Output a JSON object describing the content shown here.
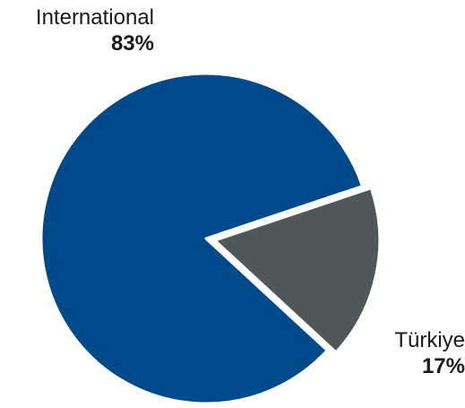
{
  "chart_data": {
    "type": "pie",
    "title": "",
    "slices": [
      {
        "label": "International",
        "value": 83,
        "value_label": "83%",
        "color": "#004a8c"
      },
      {
        "label": "Türkiye",
        "value": 17,
        "value_label": "17%",
        "color": "#4f5858"
      }
    ],
    "legend": "none",
    "exploded": "Türkiye"
  }
}
